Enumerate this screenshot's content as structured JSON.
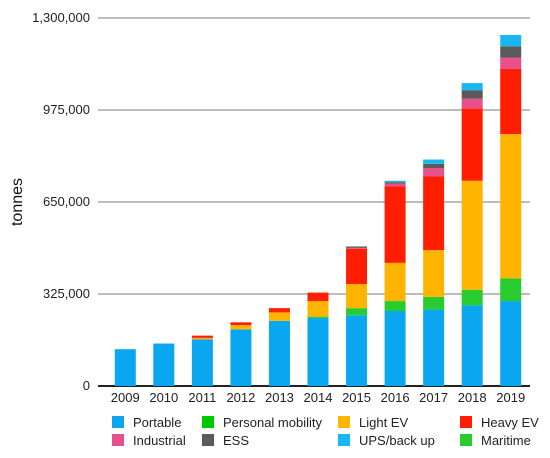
{
  "chart_data": {
    "type": "bar",
    "stacked": true,
    "title": "",
    "xlabel": "",
    "ylabel": "tonnes",
    "ylim": [
      0,
      1300000
    ],
    "yticks": [
      "0",
      "325,000",
      "650,000",
      "975,000",
      "1,300,000"
    ],
    "ytick_values": [
      0,
      325000,
      650000,
      975000,
      1300000
    ],
    "grid": true,
    "legend_position": "bottom",
    "categories": [
      "2009",
      "2010",
      "2011",
      "2012",
      "2013",
      "2014",
      "2015",
      "2016",
      "2017",
      "2018",
      "2019"
    ],
    "series": [
      {
        "name": "Portable",
        "color": "#0aa6f0",
        "values": [
          130000,
          150000,
          165000,
          200000,
          230000,
          240000,
          250000,
          265000,
          270000,
          285000,
          300000
        ]
      },
      {
        "name": "Personal mobility",
        "color": "#00c800",
        "values": [
          0,
          0,
          0,
          0,
          0,
          0,
          0,
          0,
          0,
          0,
          0
        ]
      },
      {
        "name": "Light EV",
        "color": "#ffb400",
        "values": [
          0,
          0,
          5000,
          15000,
          30000,
          55000,
          85000,
          135000,
          165000,
          385000,
          510000
        ]
      },
      {
        "name": "Heavy EV",
        "color": "#ff1e00",
        "values": [
          0,
          0,
          8000,
          10000,
          15000,
          30000,
          125000,
          270000,
          260000,
          255000,
          230000
        ]
      },
      {
        "name": "Industrial",
        "color": "#e8508c",
        "values": [
          0,
          0,
          0,
          0,
          0,
          0,
          3000,
          10000,
          30000,
          35000,
          40000
        ]
      },
      {
        "name": "ESS",
        "color": "#5a5a5a",
        "values": [
          0,
          0,
          0,
          0,
          0,
          0,
          5000,
          5000,
          15000,
          30000,
          40000
        ]
      },
      {
        "name": "UPS/back up",
        "color": "#17b7f2",
        "values": [
          0,
          0,
          0,
          0,
          0,
          0,
          0,
          5000,
          15000,
          25000,
          40000
        ]
      },
      {
        "name": "Maritime",
        "color": "#29cc2e",
        "values": [
          0,
          0,
          0,
          0,
          0,
          5000,
          25000,
          35000,
          45000,
          55000,
          80000
        ]
      }
    ],
    "stack_order": [
      "Portable",
      "Maritime",
      "Light EV",
      "Heavy EV",
      "Industrial",
      "ESS",
      "UPS/back up"
    ]
  }
}
